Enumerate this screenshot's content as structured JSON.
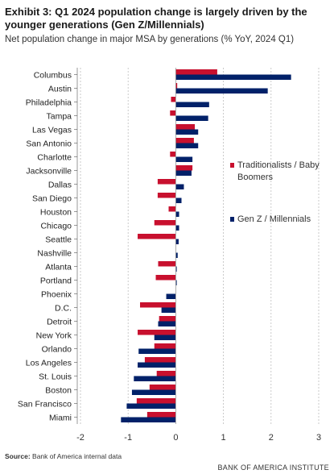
{
  "title": "Exhibit 3: Q1 2024 population change is largely driven by the younger generations (Gen Z/Millennials)",
  "subtitle": "Net population change in major MSA by generations (% YoY, 2024 Q1)",
  "source": {
    "label": "Source:",
    "text": "Bank of America internal data"
  },
  "footer": "BANK OF AMERICA INSTITUTE",
  "chart_data": {
    "type": "bar",
    "orientation": "horizontal",
    "categories": [
      "Columbus",
      "Austin",
      "Philadelphia",
      "Tampa",
      "Las Vegas",
      "San Antonio",
      "Charlotte",
      "Jacksonville",
      "Dallas",
      "San Diego",
      "Houston",
      "Chicago",
      "Seattle",
      "Nashville",
      "Atlanta",
      "Portland",
      "Phoenix",
      "D.C.",
      "Detroit",
      "New York",
      "Orlando",
      "Los Angeles",
      "St. Louis",
      "Boston",
      "San Francisco",
      "Miami"
    ],
    "series": [
      {
        "name": "Traditionalists / Baby Boomers",
        "color": "#c8102e",
        "values": [
          0.87,
          0.03,
          -0.1,
          -0.12,
          0.4,
          0.38,
          -0.12,
          0.35,
          -0.38,
          -0.38,
          -0.15,
          -0.45,
          -0.8,
          0.0,
          -0.37,
          -0.42,
          0.0,
          -0.75,
          -0.35,
          -0.8,
          -0.45,
          -0.65,
          -0.4,
          -0.55,
          -0.82,
          -0.6
        ]
      },
      {
        "name": "Gen Z / Millennials",
        "color": "#012169",
        "values": [
          2.42,
          1.93,
          0.7,
          0.68,
          0.47,
          0.47,
          0.35,
          0.33,
          0.17,
          0.12,
          0.07,
          0.07,
          0.06,
          0.04,
          0.02,
          0.02,
          -0.2,
          -0.3,
          -0.37,
          -0.45,
          -0.78,
          -0.8,
          -0.88,
          -0.92,
          -1.03,
          -1.15
        ]
      }
    ],
    "x_ticks": [
      "-2",
      "-1",
      "0",
      "1",
      "2",
      "3"
    ],
    "xlim": [
      -2,
      3
    ],
    "grid": "vertical dashed",
    "legend_position": "right"
  }
}
